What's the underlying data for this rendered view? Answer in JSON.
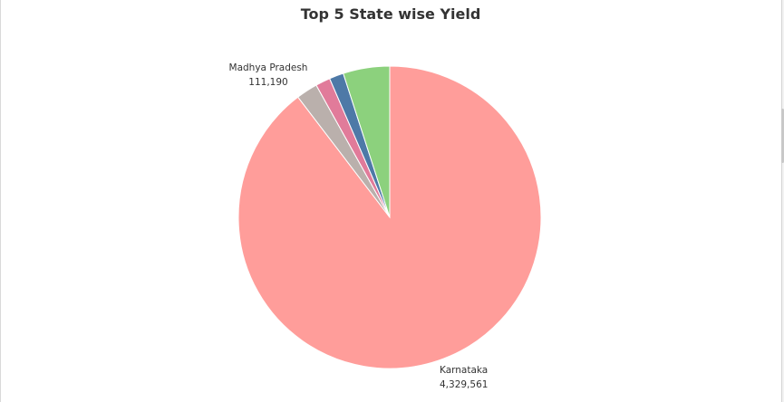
{
  "chart_data": {
    "type": "pie",
    "title": "Top 5 State wise Yield",
    "slices": [
      {
        "name": "Karnataka",
        "value": 4329561,
        "value_label": "4,329,561",
        "color": "#ff9d9a",
        "labeled": true
      },
      {
        "name": "Madhya Pradesh",
        "value": 111190,
        "value_label": "111,190",
        "color": "#bab0ac",
        "labeled": true
      },
      {
        "name": "",
        "value": 76000,
        "value_label": "",
        "color": "#e17b9a",
        "labeled": false
      },
      {
        "name": "",
        "value": 74000,
        "value_label": "",
        "color": "#4e79a7",
        "labeled": false
      },
      {
        "name": "",
        "value": 240000,
        "value_label": "",
        "color": "#8cd17d",
        "labeled": false
      }
    ]
  }
}
